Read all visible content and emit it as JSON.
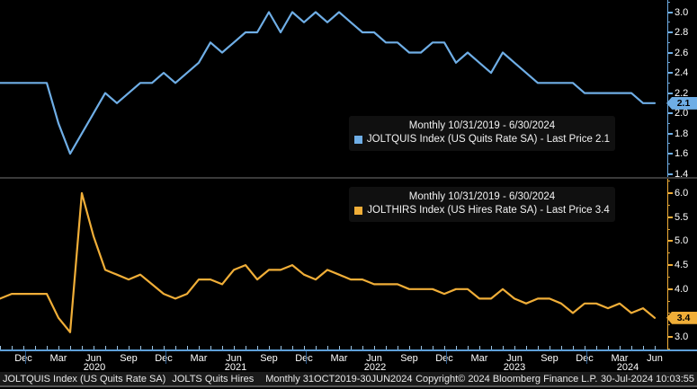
{
  "meta": {
    "background": "#000000",
    "accent_blue": "#6FAEE6",
    "accent_orange": "#F0AE38"
  },
  "chart_data": {
    "type": "line",
    "frequency": "Monthly",
    "range_title": "Monthly 10/31/2019 - 6/30/2024",
    "grid": false,
    "categories": [
      "2019-10",
      "2019-11",
      "2019-12",
      "2020-01",
      "2020-02",
      "2020-03",
      "2020-04",
      "2020-05",
      "2020-06",
      "2020-07",
      "2020-08",
      "2020-09",
      "2020-10",
      "2020-11",
      "2020-12",
      "2021-01",
      "2021-02",
      "2021-03",
      "2021-04",
      "2021-05",
      "2021-06",
      "2021-07",
      "2021-08",
      "2021-09",
      "2021-10",
      "2021-11",
      "2021-12",
      "2022-01",
      "2022-02",
      "2022-03",
      "2022-04",
      "2022-05",
      "2022-06",
      "2022-07",
      "2022-08",
      "2022-09",
      "2022-10",
      "2022-11",
      "2022-12",
      "2023-01",
      "2023-02",
      "2023-03",
      "2023-04",
      "2023-05",
      "2023-06",
      "2023-07",
      "2023-08",
      "2023-09",
      "2023-10",
      "2023-11",
      "2023-12",
      "2024-01",
      "2024-02",
      "2024-03",
      "2024-04",
      "2024-05",
      "2024-06"
    ],
    "panels": [
      {
        "panel": "top",
        "security": "JOLTQUIS Index",
        "series_name": "US Quits Rate SA",
        "legend_title": "Monthly 10/31/2019 - 6/30/2024",
        "legend_label": "JOLTQUIS Index (US Quits Rate SA) - Last Price 2.1",
        "last_price": "2.1",
        "line_color": "#6FAEE6",
        "ylim": [
          1.37,
          3.12
        ],
        "y_tick_labels": [
          "3.0",
          "2.8",
          "2.6",
          "2.4",
          "2.2",
          "2.0",
          "1.8",
          "1.6",
          "1.4"
        ],
        "minor_step": 0.1,
        "values": [
          2.3,
          2.3,
          2.3,
          2.3,
          2.3,
          1.9,
          1.6,
          1.8,
          2.0,
          2.2,
          2.1,
          2.2,
          2.3,
          2.3,
          2.4,
          2.3,
          2.4,
          2.5,
          2.7,
          2.6,
          2.7,
          2.8,
          2.8,
          3.0,
          2.8,
          3.0,
          2.9,
          3.0,
          2.9,
          3.0,
          2.9,
          2.8,
          2.8,
          2.7,
          2.7,
          2.6,
          2.6,
          2.7,
          2.7,
          2.5,
          2.6,
          2.5,
          2.4,
          2.6,
          2.5,
          2.4,
          2.3,
          2.3,
          2.3,
          2.3,
          2.2,
          2.2,
          2.2,
          2.2,
          2.2,
          2.1,
          2.1
        ]
      },
      {
        "panel": "bottom",
        "security": "JOLTHIRS Index",
        "series_name": "US Hires Rate SA",
        "legend_title": "Monthly 10/31/2019 - 6/30/2024",
        "legend_label": "JOLTHIRS Index (US Hires Rate SA) - Last Price 3.4",
        "last_price": "3.4",
        "line_color": "#F0AE38",
        "ylim": [
          2.74,
          6.3
        ],
        "y_tick_labels": [
          "6.0",
          "5.5",
          "5.0",
          "4.5",
          "4.0",
          "3.0"
        ],
        "minor_step": 0.25,
        "values": [
          3.8,
          3.9,
          3.9,
          3.9,
          3.9,
          3.4,
          3.1,
          6.0,
          5.1,
          4.4,
          4.3,
          4.2,
          4.3,
          4.1,
          3.9,
          3.8,
          3.9,
          4.2,
          4.2,
          4.1,
          4.4,
          4.5,
          4.2,
          4.4,
          4.4,
          4.5,
          4.3,
          4.2,
          4.4,
          4.3,
          4.2,
          4.2,
          4.1,
          4.1,
          4.1,
          4.0,
          4.0,
          4.0,
          3.9,
          4.0,
          4.0,
          3.8,
          3.8,
          4.0,
          3.8,
          3.7,
          3.8,
          3.8,
          3.7,
          3.5,
          3.7,
          3.7,
          3.6,
          3.7,
          3.5,
          3.6,
          3.4
        ]
      }
    ],
    "x_axis": {
      "quarter_labels": [
        "Dec",
        "Mar",
        "Jun",
        "Sep",
        "Dec",
        "Mar",
        "Jun",
        "Sep",
        "Dec",
        "Mar",
        "Jun",
        "Sep",
        "Dec",
        "Mar",
        "Jun",
        "Sep",
        "Dec",
        "Mar",
        "Jun"
      ],
      "year_labels": [
        "2020",
        "2021",
        "2022",
        "2023",
        "2024"
      ]
    }
  },
  "badges": [
    {
      "label": "2.1",
      "value": 2.1,
      "color": "#6FAEE6",
      "panel": 0
    },
    {
      "label": "3.4",
      "value": 3.4,
      "color": "#F0AE38",
      "panel": 1
    }
  ],
  "status_bar": {
    "security": "JOLTQUIS Index (US Quits Rate SA)",
    "chart_name": "JOLTS Quits Hires",
    "period": "Monthly 31OCT2019-30JUN2024",
    "copyright": "Copyright© 2024 Bloomberg Finance L.P.",
    "timestamp": "30-Jul-2024 10:03:55"
  }
}
